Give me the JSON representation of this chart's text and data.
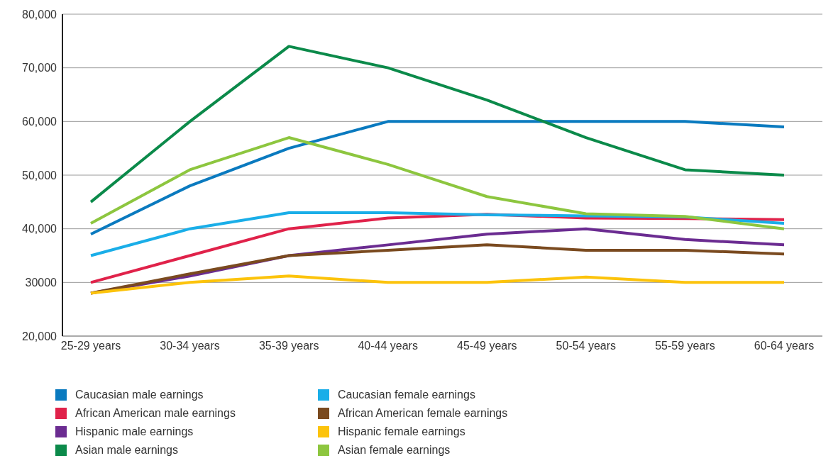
{
  "chart_data": {
    "type": "line",
    "categories": [
      "25-29 years",
      "30-34 years",
      "35-39 years",
      "40-44 years",
      "45-49 years",
      "50-54 years",
      "55-59 years",
      "60-64 years"
    ],
    "series": [
      {
        "name": "Caucasian male earnings",
        "color": "#0a7abf",
        "values": [
          39000,
          48000,
          55000,
          60000,
          60000,
          60000,
          60000,
          59000
        ]
      },
      {
        "name": "African American male earnings",
        "color": "#e0224a",
        "values": [
          30000,
          35000,
          40000,
          42000,
          42700,
          42000,
          41900,
          41700
        ]
      },
      {
        "name": "Hispanic male earnings",
        "color": "#6b2c91",
        "values": [
          28000,
          31200,
          35000,
          37000,
          39000,
          40000,
          38000,
          37000
        ]
      },
      {
        "name": "Asian male earnings",
        "color": "#0b8a4a",
        "values": [
          45000,
          60000,
          74000,
          70000,
          64000,
          57000,
          51000,
          50000
        ]
      },
      {
        "name": "Caucasian female earnings",
        "color": "#1aaee8",
        "values": [
          35000,
          40000,
          43000,
          43000,
          42600,
          42400,
          42200,
          41000
        ]
      },
      {
        "name": "African American female earnings",
        "color": "#7a4a1f",
        "values": [
          28000,
          31600,
          35000,
          36000,
          37000,
          36000,
          36000,
          35300
        ]
      },
      {
        "name": "Hispanic female earnings",
        "color": "#fcc30b",
        "values": [
          28000,
          30000,
          31200,
          30000,
          30000,
          31000,
          30000,
          30000
        ]
      },
      {
        "name": "Asian female earnings",
        "color": "#8dc63f",
        "values": [
          41000,
          51000,
          57000,
          52000,
          46000,
          42800,
          42300,
          40000
        ]
      }
    ],
    "ylim": [
      20000,
      80000
    ],
    "yticks": [
      {
        "value": 20000,
        "label": "20,000"
      },
      {
        "value": 30000,
        "label": "30000"
      },
      {
        "value": 40000,
        "label": "40,000"
      },
      {
        "value": 50000,
        "label": "50,000"
      },
      {
        "value": 60000,
        "label": "60,000"
      },
      {
        "value": 70000,
        "label": "70,000"
      },
      {
        "value": 80000,
        "label": "80,000"
      }
    ],
    "grid": "y",
    "legend": "bottom",
    "marker": "none",
    "line_style": "solid"
  }
}
